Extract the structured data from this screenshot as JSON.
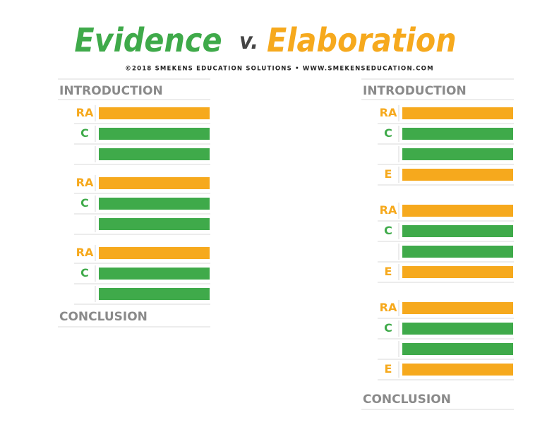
{
  "header": {
    "title_part1": "Evidence",
    "title_part2": "v.",
    "title_part3": "Elaboration",
    "credit": "©2018 SMEKENS EDUCATION SOLUTIONS • WWW.SMEKENSEDUCATION.COM"
  },
  "columns": [
    {
      "heading": "INTRODUCTION",
      "groups": [
        {
          "rows": [
            {
              "label": "RA",
              "color": "#f6a91d"
            },
            {
              "label": "C",
              "color": "#3faa4a"
            },
            {
              "color": "#3faa4a"
            }
          ]
        },
        {
          "rows": [
            {
              "label": "RA",
              "color": "#f6a91d"
            },
            {
              "label": "C",
              "color": "#3faa4a"
            },
            {
              "color": "#3faa4a"
            }
          ]
        },
        {
          "rows": [
            {
              "label": "RA",
              "color": "#f6a91d"
            },
            {
              "label": "C",
              "color": "#3faa4a"
            },
            {
              "color": "#3faa4a"
            }
          ]
        }
      ],
      "footer": "CONCLUSION"
    },
    {
      "heading": "INTRODUCTION",
      "groups": [
        {
          "rows": [
            {
              "label": "RA",
              "color": "#f6a91d"
            },
            {
              "label": "C",
              "color": "#3faa4a"
            },
            {
              "color": "#3faa4a"
            },
            {
              "label": "E",
              "color": "#f6a91d"
            }
          ]
        },
        {
          "rows": [
            {
              "label": "RA",
              "color": "#f6a91d"
            },
            {
              "label": "C",
              "color": "#3faa4a"
            },
            {
              "color": "#3faa4a"
            },
            {
              "label": "E",
              "color": "#f6a91d"
            }
          ]
        },
        {
          "rows": [
            {
              "label": "RA",
              "color": "#f6a91d"
            },
            {
              "label": "C",
              "color": "#3faa4a"
            },
            {
              "color": "#3faa4a"
            },
            {
              "label": "E",
              "color": "#f6a91d"
            }
          ]
        }
      ],
      "footer": "CONCLUSION"
    }
  ]
}
